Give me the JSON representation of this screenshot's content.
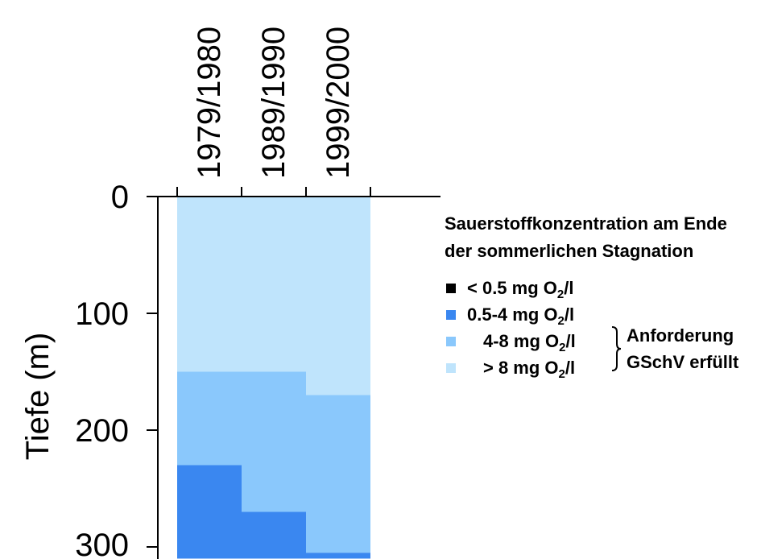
{
  "chart_data": {
    "type": "area",
    "ylabel": "Tiefe (m)",
    "y_axis_inverted": true,
    "ylim": [
      0,
      310
    ],
    "yticks": [
      0,
      100,
      200,
      300
    ],
    "categories": [
      "1979/1980",
      "1989/1990",
      "1999/2000"
    ],
    "series": [
      {
        "name": "> 8 mg O₂/l",
        "color": "#bfe4fc",
        "ranges": [
          [
            0,
            150
          ],
          [
            0,
            150
          ],
          [
            0,
            170
          ]
        ]
      },
      {
        "name": "4-8 mg O₂/l",
        "color": "#8ac8fc",
        "ranges": [
          [
            150,
            230
          ],
          [
            150,
            270
          ],
          [
            170,
            305
          ]
        ]
      },
      {
        "name": "0.5-4 mg O₂/l",
        "color": "#3a87f0",
        "ranges": [
          [
            230,
            310
          ],
          [
            270,
            310
          ],
          [
            305,
            310
          ]
        ]
      },
      {
        "name": "< 0.5 mg O₂/l",
        "color": "#000000",
        "ranges": []
      }
    ],
    "legend": {
      "title_line1": "Sauerstoffkonzentration am Ende",
      "title_line2": "der sommerlichen Stagnation",
      "items": [
        {
          "prefix": "< 0.5",
          "color": "#000000"
        },
        {
          "prefix": "0.5-4",
          "color": "#3a87f0"
        },
        {
          "prefix": "4-8",
          "color": "#8ac8fc"
        },
        {
          "prefix": "> 8",
          "color": "#bfe4fc"
        }
      ],
      "unit_main": "mg O",
      "unit_sub": "2",
      "unit_end": "/l",
      "brace_note_line1": "Anforderung",
      "brace_note_line2": "GSchV erfüllt",
      "placement": "right"
    }
  }
}
